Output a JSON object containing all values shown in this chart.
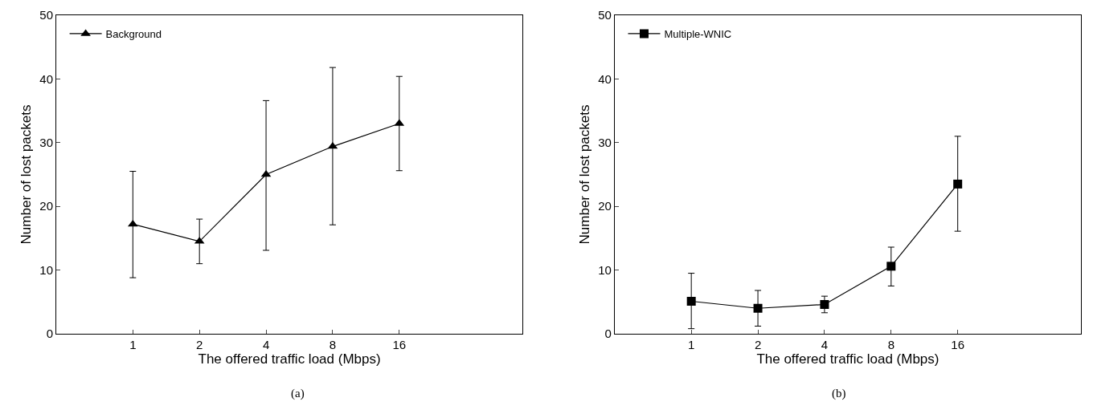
{
  "chart_data": [
    {
      "type": "line",
      "xlabel": "The offered traffic load (Mbps)",
      "ylabel": "Number of lost packets",
      "categories": [
        "1",
        "2",
        "4",
        "8",
        "16"
      ],
      "series": [
        {
          "name": "Background",
          "color": "#000000",
          "values": [
            17.2,
            14.5,
            25.0,
            29.4,
            33.0
          ],
          "errors": [
            [
              8.8,
              25.5
            ],
            [
              11.0,
              18.0
            ],
            [
              13.1,
              36.6
            ],
            [
              17.1,
              41.8
            ],
            [
              25.6,
              40.4
            ]
          ]
        }
      ],
      "marker": "triangle",
      "ylim": [
        0,
        50
      ],
      "yticks": [
        0,
        10,
        20,
        30,
        40,
        50
      ],
      "legend": "top left",
      "annotations": [
        "(a)"
      ]
    },
    {
      "type": "line",
      "xlabel": "The offered traffic load (Mbps)",
      "ylabel": "Number of lost packets",
      "categories": [
        "1",
        "2",
        "4",
        "8",
        "16"
      ],
      "series": [
        {
          "name": "Multiple-WNIC",
          "color": "#000000",
          "values": [
            5.1,
            4.0,
            4.6,
            10.6,
            23.5
          ],
          "errors": [
            [
              0.8,
              9.5
            ],
            [
              1.2,
              6.8
            ],
            [
              3.3,
              5.9
            ],
            [
              7.5,
              13.6
            ],
            [
              16.1,
              31.0
            ]
          ]
        }
      ],
      "marker": "square",
      "ylim": [
        0,
        50
      ],
      "yticks": [
        0,
        10,
        20,
        30,
        40,
        50
      ],
      "legend": "top left",
      "annotations": [
        "(b)"
      ]
    }
  ]
}
